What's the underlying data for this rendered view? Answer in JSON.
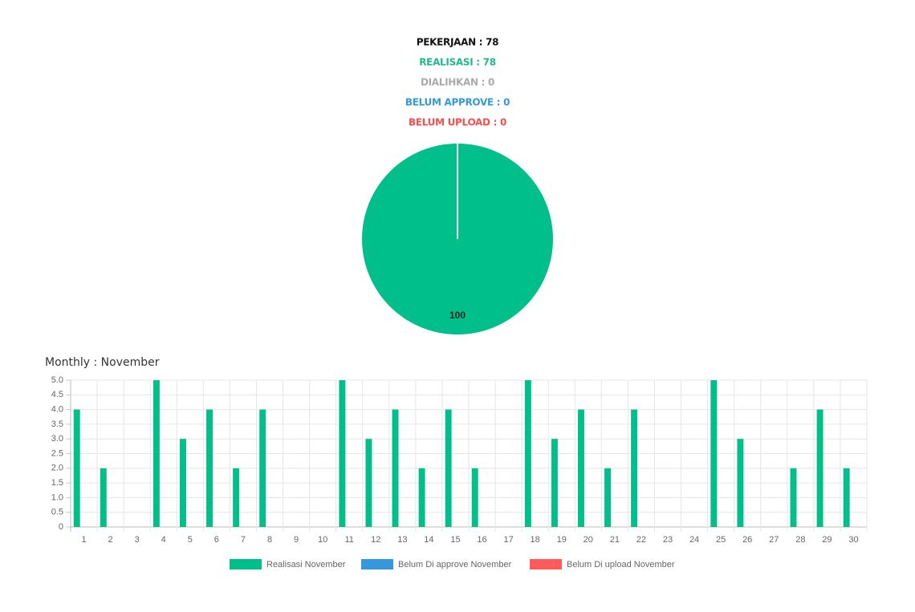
{
  "summary": [
    "PEKERJAAN : 78",
    "REALISASI : 78",
    "DIALIHKAN : 0",
    "BELUM APPROVE : 0",
    "BELUM UPLOAD : 0"
  ],
  "chart_data": [
    {
      "type": "pie",
      "values": [
        100
      ],
      "colors": [
        "#00bf8a"
      ]
    },
    {
      "type": "bar",
      "title": "Monthly : November",
      "categories": [
        "1",
        "2",
        "3",
        "4",
        "5",
        "6",
        "7",
        "8",
        "9",
        "10",
        "11",
        "12",
        "13",
        "14",
        "15",
        "16",
        "17",
        "18",
        "19",
        "20",
        "21",
        "22",
        "23",
        "24",
        "25",
        "26",
        "27",
        "28",
        "29",
        "30"
      ],
      "series": [
        {
          "name": "Realisasi November",
          "color": "#00bf8a",
          "values": [
            4,
            2,
            0,
            5,
            3,
            4,
            2,
            4,
            0,
            0,
            5,
            3,
            4,
            2,
            4,
            2,
            0,
            5,
            3,
            4,
            2,
            4,
            0,
            0,
            5,
            3,
            0,
            2,
            4,
            2
          ]
        },
        {
          "name": "Belum Di approve November",
          "color": "#3498db",
          "values": [
            0,
            0,
            0,
            0,
            0,
            0,
            0,
            0,
            0,
            0,
            0,
            0,
            0,
            0,
            0,
            0,
            0,
            0,
            0,
            0,
            0,
            0,
            0,
            0,
            0,
            0,
            0,
            0,
            0,
            0
          ]
        },
        {
          "name": "Belum Di upload November",
          "color": "#ff5b5b",
          "values": [
            0,
            0,
            0,
            0,
            0,
            0,
            0,
            0,
            0,
            0,
            0,
            0,
            0,
            0,
            0,
            0,
            0,
            0,
            0,
            0,
            0,
            0,
            0,
            0,
            0,
            0,
            0,
            0,
            0,
            0
          ]
        }
      ],
      "ylim": [
        0,
        5
      ],
      "yticks": [
        0,
        0.5,
        {
          "value": 1,
          "label": "1.0"
        },
        1.5,
        {
          "value": 2,
          "label": "2.0"
        },
        2.5,
        {
          "value": 3,
          "label": "3.0"
        },
        3.5,
        {
          "value": 4,
          "label": "4.0"
        },
        4.5,
        {
          "value": 5,
          "label": "5.0"
        }
      ],
      "grid": true
    }
  ]
}
